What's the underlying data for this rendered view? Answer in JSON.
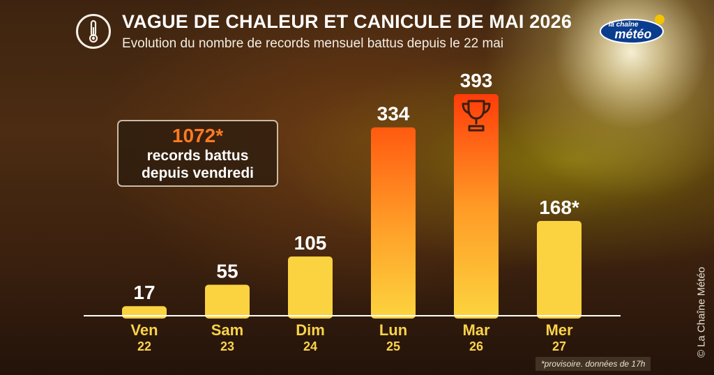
{
  "header": {
    "icon": "thermometer-icon",
    "title": "VAGUE DE CHALEUR ET CANICULE DE MAI 2026",
    "subtitle": "Evolution du nombre de records mensuel battus depuis le 22 mai"
  },
  "logo": {
    "line1": "la chaîne",
    "line2": "météo",
    "colors": {
      "bg": "#0b3d8f",
      "sun": "#f5c400"
    }
  },
  "summary": {
    "value": "1072*",
    "line1": "records battus",
    "line2": "depuis vendredi"
  },
  "chart_data": {
    "type": "bar",
    "title": "VAGUE DE CHALEUR ET CANICULE DE MAI 2026",
    "subtitle": "Evolution du nombre de records mensuel battus depuis le 22 mai",
    "categories": [
      "Ven 22",
      "Sam 23",
      "Dim 24",
      "Lun 25",
      "Mar 26",
      "Mer 27"
    ],
    "days": [
      "Ven",
      "Sam",
      "Dim",
      "Lun",
      "Mar",
      "Mer"
    ],
    "dates": [
      "22",
      "23",
      "24",
      "25",
      "26",
      "27"
    ],
    "values": [
      17,
      55,
      105,
      334,
      393,
      168
    ],
    "value_labels": [
      "17",
      "55",
      "105",
      "334",
      "393",
      "168*"
    ],
    "ylim": [
      0,
      393
    ],
    "grid": false,
    "highlight": {
      "index": 4,
      "icon": "trophy-icon"
    },
    "colors": {
      "bar": "#fbd240",
      "bar_top_hot": "#ff5a10",
      "bar_top_record": "#ff3c0a",
      "label": "#ffffff",
      "axis_text": "#fbd34a"
    }
  },
  "footnote": "*provisoire. données de 17h",
  "credit": "© La Chaîne Météo"
}
